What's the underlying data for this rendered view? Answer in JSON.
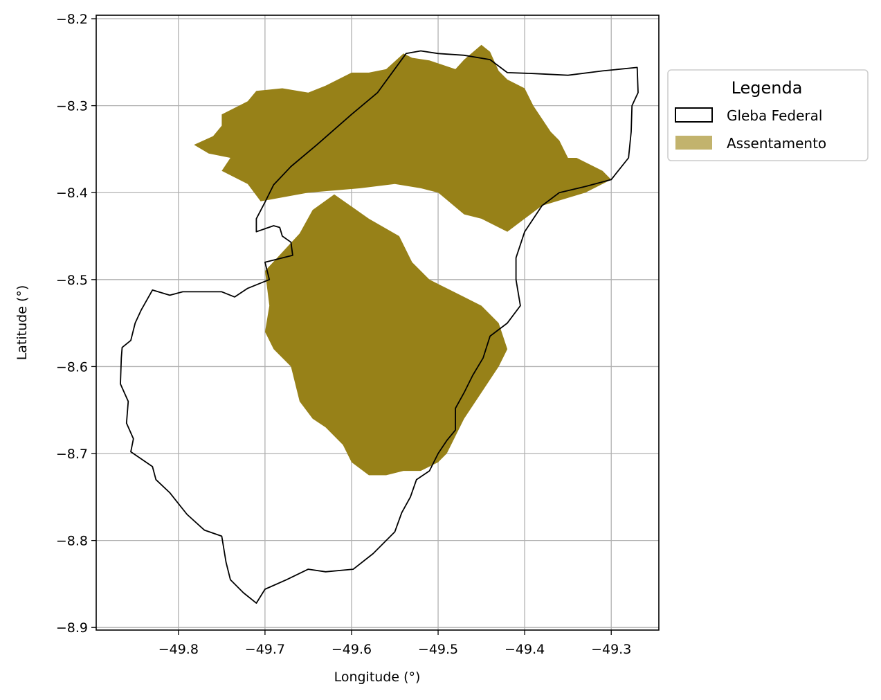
{
  "chart_data": {
    "type": "map",
    "xlabel": "Longitude (°)",
    "ylabel": "Latitude (°)",
    "xlim": [
      -49.895,
      -49.245
    ],
    "ylim": [
      -8.903,
      -8.196
    ],
    "xticks": [
      -49.8,
      -49.7,
      -49.6,
      -49.5,
      -49.4,
      -49.3
    ],
    "xtick_labels": [
      "−49.8",
      "−49.7",
      "−49.6",
      "−49.5",
      "−49.4",
      "−49.3"
    ],
    "yticks": [
      -8.2,
      -8.3,
      -8.4,
      -8.5,
      -8.6,
      -8.7,
      -8.8,
      -8.9
    ],
    "ytick_labels": [
      "−8.2",
      "−8.3",
      "−8.4",
      "−8.5",
      "−8.6",
      "−8.7",
      "−8.8",
      "−8.9"
    ],
    "grid": true,
    "legend": {
      "title": "Legenda",
      "placement": "outside-right-top",
      "entries": [
        {
          "label": "Gleba Federal",
          "fill": "#ffffff",
          "edge": "#000000"
        },
        {
          "label": "Assentamento",
          "fill": "#c2b36d",
          "edge": "none"
        }
      ]
    },
    "colors": {
      "assentamento": "#978118",
      "gleba_edge": "#000000",
      "grid": "#b0b0b0"
    },
    "gleba_federal": [
      [
        -49.7,
        -8.411
      ],
      [
        -49.69,
        -8.391
      ],
      [
        -49.67,
        -8.37
      ],
      [
        -49.64,
        -8.345
      ],
      [
        -49.6,
        -8.31
      ],
      [
        -49.57,
        -8.285
      ],
      [
        -49.537,
        -8.24
      ],
      [
        -49.52,
        -8.237
      ],
      [
        -49.5,
        -8.24
      ],
      [
        -49.47,
        -8.242
      ],
      [
        -49.44,
        -8.247
      ],
      [
        -49.42,
        -8.262
      ],
      [
        -49.39,
        -8.263
      ],
      [
        -49.35,
        -8.265
      ],
      [
        -49.31,
        -8.26
      ],
      [
        -49.27,
        -8.256
      ],
      [
        -49.269,
        -8.285
      ],
      [
        -49.276,
        -8.3
      ],
      [
        -49.277,
        -8.33
      ],
      [
        -49.28,
        -8.36
      ],
      [
        -49.3,
        -8.385
      ],
      [
        -49.33,
        -8.393
      ],
      [
        -49.36,
        -8.4
      ],
      [
        -49.38,
        -8.415
      ],
      [
        -49.4,
        -8.445
      ],
      [
        -49.41,
        -8.475
      ],
      [
        -49.41,
        -8.5
      ],
      [
        -49.405,
        -8.53
      ],
      [
        -49.42,
        -8.55
      ],
      [
        -49.44,
        -8.565
      ],
      [
        -49.448,
        -8.59
      ],
      [
        -49.46,
        -8.61
      ],
      [
        -49.47,
        -8.63
      ],
      [
        -49.48,
        -8.648
      ],
      [
        -49.48,
        -8.673
      ],
      [
        -49.49,
        -8.685
      ],
      [
        -49.5,
        -8.7
      ],
      [
        -49.51,
        -8.72
      ],
      [
        -49.525,
        -8.73
      ],
      [
        -49.532,
        -8.75
      ],
      [
        -49.542,
        -8.768
      ],
      [
        -49.55,
        -8.79
      ],
      [
        -49.575,
        -8.815
      ],
      [
        -49.598,
        -8.833
      ],
      [
        -49.63,
        -8.836
      ],
      [
        -49.65,
        -8.833
      ],
      [
        -49.675,
        -8.845
      ],
      [
        -49.7,
        -8.856
      ],
      [
        -49.71,
        -8.872
      ],
      [
        -49.725,
        -8.86
      ],
      [
        -49.74,
        -8.845
      ],
      [
        -49.745,
        -8.825
      ],
      [
        -49.75,
        -8.795
      ],
      [
        -49.77,
        -8.788
      ],
      [
        -49.79,
        -8.77
      ],
      [
        -49.81,
        -8.745
      ],
      [
        -49.826,
        -8.73
      ],
      [
        -49.83,
        -8.715
      ],
      [
        -49.855,
        -8.698
      ],
      [
        -49.852,
        -8.683
      ],
      [
        -49.86,
        -8.665
      ],
      [
        -49.858,
        -8.64
      ],
      [
        -49.867,
        -8.62
      ],
      [
        -49.866,
        -8.59
      ],
      [
        -49.865,
        -8.578
      ],
      [
        -49.855,
        -8.57
      ],
      [
        -49.85,
        -8.55
      ],
      [
        -49.843,
        -8.535
      ],
      [
        -49.83,
        -8.512
      ],
      [
        -49.81,
        -8.518
      ],
      [
        -49.795,
        -8.514
      ],
      [
        -49.77,
        -8.514
      ],
      [
        -49.75,
        -8.514
      ],
      [
        -49.735,
        -8.52
      ],
      [
        -49.72,
        -8.51
      ],
      [
        -49.695,
        -8.5
      ],
      [
        -49.7,
        -8.48
      ],
      [
        -49.668,
        -8.472
      ],
      [
        -49.67,
        -8.457
      ],
      [
        -49.68,
        -8.45
      ],
      [
        -49.683,
        -8.44
      ],
      [
        -49.69,
        -8.438
      ],
      [
        -49.71,
        -8.445
      ],
      [
        -49.71,
        -8.43
      ],
      [
        -49.7,
        -8.411
      ]
    ],
    "assentamentos": [
      [
        [
          -49.705,
          -8.41
        ],
        [
          -49.72,
          -8.39
        ],
        [
          -49.75,
          -8.375
        ],
        [
          -49.74,
          -8.36
        ],
        [
          -49.765,
          -8.355
        ],
        [
          -49.782,
          -8.345
        ],
        [
          -49.76,
          -8.335
        ],
        [
          -49.75,
          -8.323
        ],
        [
          -49.75,
          -8.31
        ],
        [
          -49.73,
          -8.3
        ],
        [
          -49.72,
          -8.295
        ],
        [
          -49.71,
          -8.283
        ],
        [
          -49.68,
          -8.28
        ],
        [
          -49.65,
          -8.285
        ],
        [
          -49.63,
          -8.277
        ],
        [
          -49.6,
          -8.262
        ],
        [
          -49.58,
          -8.262
        ],
        [
          -49.56,
          -8.258
        ],
        [
          -49.54,
          -8.24
        ],
        [
          -49.53,
          -8.245
        ],
        [
          -49.51,
          -8.248
        ],
        [
          -49.48,
          -8.258
        ],
        [
          -49.47,
          -8.247
        ],
        [
          -49.45,
          -8.23
        ],
        [
          -49.44,
          -8.238
        ],
        [
          -49.43,
          -8.26
        ],
        [
          -49.42,
          -8.27
        ],
        [
          -49.4,
          -8.28
        ],
        [
          -49.39,
          -8.3
        ],
        [
          -49.37,
          -8.33
        ],
        [
          -49.36,
          -8.34
        ],
        [
          -49.35,
          -8.36
        ],
        [
          -49.34,
          -8.36
        ],
        [
          -49.31,
          -8.375
        ],
        [
          -49.3,
          -8.385
        ],
        [
          -49.33,
          -8.4
        ],
        [
          -49.38,
          -8.415
        ],
        [
          -49.4,
          -8.43
        ],
        [
          -49.42,
          -8.445
        ],
        [
          -49.45,
          -8.43
        ],
        [
          -49.47,
          -8.425
        ],
        [
          -49.5,
          -8.4
        ],
        [
          -49.52,
          -8.395
        ],
        [
          -49.55,
          -8.39
        ],
        [
          -49.59,
          -8.395
        ],
        [
          -49.65,
          -8.4
        ],
        [
          -49.705,
          -8.41
        ]
      ],
      [
        [
          -49.7,
          -8.49
        ],
        [
          -49.66,
          -8.447
        ],
        [
          -49.645,
          -8.42
        ],
        [
          -49.62,
          -8.402
        ],
        [
          -49.58,
          -8.43
        ],
        [
          -49.545,
          -8.45
        ],
        [
          -49.53,
          -8.48
        ],
        [
          -49.51,
          -8.5
        ],
        [
          -49.49,
          -8.51
        ],
        [
          -49.47,
          -8.52
        ],
        [
          -49.45,
          -8.53
        ],
        [
          -49.43,
          -8.55
        ],
        [
          -49.42,
          -8.58
        ],
        [
          -49.43,
          -8.6
        ],
        [
          -49.45,
          -8.63
        ],
        [
          -49.47,
          -8.66
        ],
        [
          -49.48,
          -8.68
        ],
        [
          -49.49,
          -8.7
        ],
        [
          -49.5,
          -8.71
        ],
        [
          -49.52,
          -8.72
        ],
        [
          -49.54,
          -8.72
        ],
        [
          -49.56,
          -8.725
        ],
        [
          -49.58,
          -8.725
        ],
        [
          -49.6,
          -8.71
        ],
        [
          -49.61,
          -8.69
        ],
        [
          -49.63,
          -8.67
        ],
        [
          -49.645,
          -8.66
        ],
        [
          -49.66,
          -8.64
        ],
        [
          -49.67,
          -8.6
        ],
        [
          -49.69,
          -8.58
        ],
        [
          -49.7,
          -8.56
        ],
        [
          -49.695,
          -8.53
        ],
        [
          -49.7,
          -8.49
        ]
      ]
    ]
  }
}
